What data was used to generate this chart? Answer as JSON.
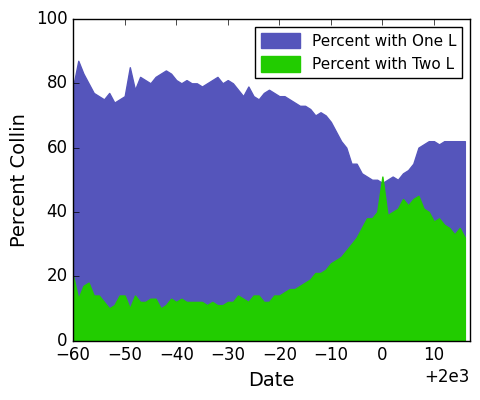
{
  "title": "",
  "xlabel": "Date",
  "ylabel": "Percent Collin",
  "xlim": [
    1940,
    2017
  ],
  "ylim": [
    0,
    100
  ],
  "legend_labels": [
    "Percent with One L",
    "Percent with Two L"
  ],
  "color_one_l": "#5555bb",
  "color_two_l": "#22cc00",
  "years": [
    1940,
    1941,
    1942,
    1943,
    1944,
    1945,
    1946,
    1947,
    1948,
    1949,
    1950,
    1951,
    1952,
    1953,
    1954,
    1955,
    1956,
    1957,
    1958,
    1959,
    1960,
    1961,
    1962,
    1963,
    1964,
    1965,
    1966,
    1967,
    1968,
    1969,
    1970,
    1971,
    1972,
    1973,
    1974,
    1975,
    1976,
    1977,
    1978,
    1979,
    1980,
    1981,
    1982,
    1983,
    1984,
    1985,
    1986,
    1987,
    1988,
    1989,
    1990,
    1991,
    1992,
    1993,
    1994,
    1995,
    1996,
    1997,
    1998,
    1999,
    2000,
    2001,
    2002,
    2003,
    2004,
    2005,
    2006,
    2007,
    2008,
    2009,
    2010,
    2011,
    2012,
    2013,
    2014,
    2015,
    2016
  ],
  "one_l": [
    79,
    87,
    83,
    80,
    77,
    76,
    75,
    77,
    74,
    75,
    76,
    85,
    78,
    82,
    81,
    80,
    82,
    83,
    84,
    83,
    81,
    80,
    81,
    80,
    80,
    79,
    80,
    81,
    82,
    80,
    81,
    80,
    78,
    76,
    79,
    76,
    75,
    77,
    78,
    77,
    76,
    76,
    75,
    74,
    73,
    73,
    72,
    70,
    71,
    70,
    68,
    65,
    62,
    60,
    55,
    55,
    52,
    51,
    50,
    50,
    49,
    50,
    51,
    50,
    52,
    53,
    55,
    60,
    61,
    62,
    62,
    61,
    62,
    62,
    62,
    62,
    62
  ],
  "two_l": [
    20,
    13,
    17,
    18,
    14,
    14,
    12,
    10,
    11,
    14,
    14,
    10,
    14,
    12,
    12,
    13,
    13,
    10,
    11,
    13,
    12,
    13,
    12,
    12,
    12,
    12,
    11,
    12,
    11,
    11,
    12,
    12,
    14,
    13,
    12,
    14,
    14,
    12,
    12,
    14,
    14,
    15,
    16,
    16,
    17,
    18,
    19,
    21,
    21,
    22,
    24,
    25,
    26,
    28,
    30,
    32,
    35,
    38,
    38,
    40,
    51,
    39,
    40,
    41,
    44,
    42,
    44,
    45,
    41,
    40,
    37,
    38,
    36,
    35,
    33,
    35,
    32
  ],
  "xticks": [
    1940,
    1950,
    1960,
    1970,
    1980,
    1990,
    2000,
    2010
  ],
  "yticks": [
    0,
    20,
    40,
    60,
    80,
    100
  ],
  "xlabel_fontsize": 14,
  "ylabel_fontsize": 14,
  "tick_fontsize": 12,
  "legend_fontsize": 11
}
